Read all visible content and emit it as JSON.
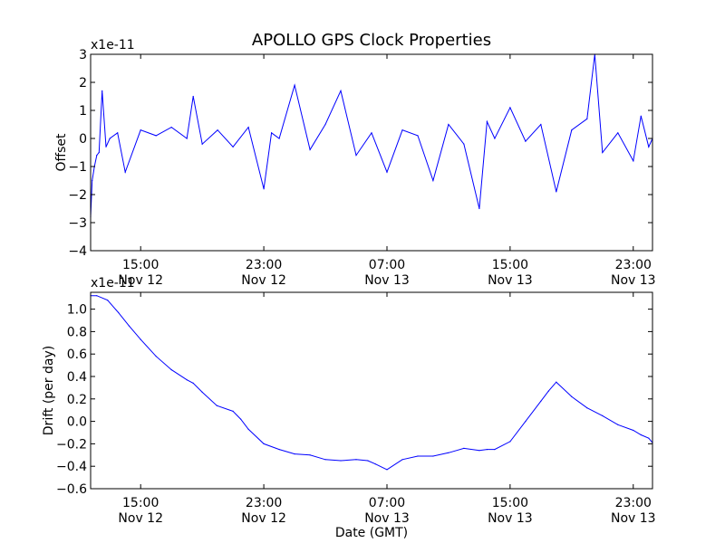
{
  "figure": {
    "title": "APOLLO GPS Clock Properties"
  },
  "colors": {
    "line": "#0000ff",
    "axes": "#000000",
    "background": "#ffffff"
  },
  "chart_data": [
    {
      "type": "line",
      "title": "APOLLO GPS Clock Properties",
      "ylabel": "Offset",
      "xlabel": "",
      "multiplier": "x1e-11",
      "ylim": [
        -4,
        3
      ],
      "xlim": [
        "2012-11-12 11:45",
        "2012-11-14 00:15"
      ],
      "yticks": [
        -4,
        -3,
        -2,
        -1,
        0,
        1,
        2,
        3
      ],
      "ytick_labels": [
        "−4",
        "−3",
        "−2",
        "−1",
        "0",
        "1",
        "2",
        "3"
      ],
      "xtick_labels": [
        {
          "time": "15:00",
          "date": "Nov 12"
        },
        {
          "time": "23:00",
          "date": "Nov 12"
        },
        {
          "time": "07:00",
          "date": "Nov 13"
        },
        {
          "time": "15:00",
          "date": "Nov 13"
        },
        {
          "time": "23:00",
          "date": "Nov 13"
        }
      ],
      "xtick_times": [
        "2012-11-12 15:00",
        "2012-11-12 23:00",
        "2012-11-13 07:00",
        "2012-11-13 15:00",
        "2012-11-13 23:00"
      ],
      "grid": false,
      "series": [
        {
          "x": [
            "2012-11-12 11:45",
            "2012-11-12 11:51",
            "2012-11-12 12:00",
            "2012-11-12 12:09",
            "2012-11-12 12:18",
            "2012-11-12 12:30",
            "2012-11-12 12:45",
            "2012-11-12 13:00",
            "2012-11-12 13:30",
            "2012-11-12 14:00",
            "2012-11-12 15:00",
            "2012-11-12 16:00",
            "2012-11-12 17:00",
            "2012-11-12 18:00",
            "2012-11-12 18:25",
            "2012-11-12 19:00",
            "2012-11-12 20:00",
            "2012-11-12 21:00",
            "2012-11-12 22:00",
            "2012-11-12 23:00",
            "2012-11-12 23:30",
            "2012-11-13 00:00",
            "2012-11-13 01:00",
            "2012-11-13 02:00",
            "2012-11-13 03:00",
            "2012-11-13 04:00",
            "2012-11-13 05:00",
            "2012-11-13 06:00",
            "2012-11-13 07:00",
            "2012-11-13 08:00",
            "2012-11-13 09:00",
            "2012-11-13 10:00",
            "2012-11-13 11:00",
            "2012-11-13 12:00",
            "2012-11-13 13:00",
            "2012-11-13 13:30",
            "2012-11-13 14:00",
            "2012-11-13 15:00",
            "2012-11-13 16:00",
            "2012-11-13 17:00",
            "2012-11-13 18:00",
            "2012-11-13 19:00",
            "2012-11-13 20:00",
            "2012-11-13 20:30",
            "2012-11-13 21:00",
            "2012-11-13 22:00",
            "2012-11-13 23:00",
            "2012-11-13 23:30",
            "2012-11-14 00:00",
            "2012-11-14 00:15"
          ],
          "y": [
            -2.8,
            -1.5,
            -1.0,
            -0.6,
            -0.5,
            1.7,
            -0.3,
            0.0,
            0.2,
            -1.2,
            0.3,
            0.1,
            0.4,
            0.0,
            1.5,
            -0.2,
            0.3,
            -0.3,
            0.4,
            -1.8,
            0.2,
            0.0,
            1.9,
            -0.4,
            0.5,
            1.7,
            -0.6,
            0.2,
            -1.2,
            0.3,
            0.1,
            -1.5,
            0.5,
            -0.2,
            -2.5,
            0.6,
            0.0,
            1.1,
            -0.1,
            0.5,
            -1.9,
            0.3,
            0.7,
            3.0,
            -0.5,
            0.2,
            -0.8,
            0.8,
            -0.3,
            0.0
          ]
        }
      ]
    },
    {
      "type": "line",
      "title": "",
      "ylabel": "Drift (per day)",
      "xlabel": "Date (GMT)",
      "multiplier": "x1e-11",
      "ylim": [
        -0.6,
        1.15
      ],
      "xlim": [
        "2012-11-12 11:45",
        "2012-11-14 00:15"
      ],
      "yticks": [
        -0.6,
        -0.4,
        -0.2,
        0.0,
        0.2,
        0.4,
        0.6,
        0.8,
        1.0
      ],
      "ytick_labels": [
        "−0.6",
        "−0.4",
        "−0.2",
        "0.0",
        "0.2",
        "0.4",
        "0.6",
        "0.8",
        "1.0"
      ],
      "xtick_labels": [
        {
          "time": "15:00",
          "date": "Nov 12"
        },
        {
          "time": "23:00",
          "date": "Nov 12"
        },
        {
          "time": "07:00",
          "date": "Nov 13"
        },
        {
          "time": "15:00",
          "date": "Nov 13"
        },
        {
          "time": "23:00",
          "date": "Nov 13"
        }
      ],
      "xtick_times": [
        "2012-11-12 15:00",
        "2012-11-12 23:00",
        "2012-11-13 07:00",
        "2012-11-13 15:00",
        "2012-11-13 23:00"
      ],
      "grid": false,
      "series": [
        {
          "x": [
            "2012-11-12 11:45",
            "2012-11-12 12:09",
            "2012-11-12 12:51",
            "2012-11-12 13:33",
            "2012-11-12 14:15",
            "2012-11-12 15:00",
            "2012-11-12 16:00",
            "2012-11-12 17:00",
            "2012-11-12 18:00",
            "2012-11-12 18:25",
            "2012-11-12 19:00",
            "2012-11-12 19:57",
            "2012-11-12 21:00",
            "2012-11-12 21:30",
            "2012-11-12 22:00",
            "2012-11-12 23:00",
            "2012-11-13 00:00",
            "2012-11-13 01:00",
            "2012-11-13 02:00",
            "2012-11-13 03:00",
            "2012-11-13 04:00",
            "2012-11-13 05:00",
            "2012-11-13 05:45",
            "2012-11-13 06:15",
            "2012-11-13 07:00",
            "2012-11-13 08:00",
            "2012-11-13 09:00",
            "2012-11-13 10:00",
            "2012-11-13 11:00",
            "2012-11-13 12:00",
            "2012-11-13 13:00",
            "2012-11-13 13:30",
            "2012-11-13 14:00",
            "2012-11-13 15:00",
            "2012-11-13 16:00",
            "2012-11-13 17:00",
            "2012-11-13 17:30",
            "2012-11-13 18:00",
            "2012-11-13 19:00",
            "2012-11-13 20:00",
            "2012-11-13 21:00",
            "2012-11-13 22:00",
            "2012-11-13 23:00",
            "2012-11-13 23:30",
            "2012-11-14 00:00",
            "2012-11-14 00:15"
          ],
          "y": [
            1.12,
            1.12,
            1.08,
            0.97,
            0.85,
            0.73,
            0.58,
            0.46,
            0.37,
            0.34,
            0.26,
            0.14,
            0.09,
            0.02,
            -0.07,
            -0.2,
            -0.25,
            -0.29,
            -0.3,
            -0.34,
            -0.35,
            -0.34,
            -0.35,
            -0.38,
            -0.43,
            -0.34,
            -0.31,
            -0.31,
            -0.28,
            -0.24,
            -0.26,
            -0.25,
            -0.25,
            -0.18,
            0.0,
            0.18,
            0.27,
            0.35,
            0.22,
            0.12,
            0.05,
            -0.03,
            -0.08,
            -0.12,
            -0.15,
            -0.19
          ]
        }
      ]
    }
  ]
}
